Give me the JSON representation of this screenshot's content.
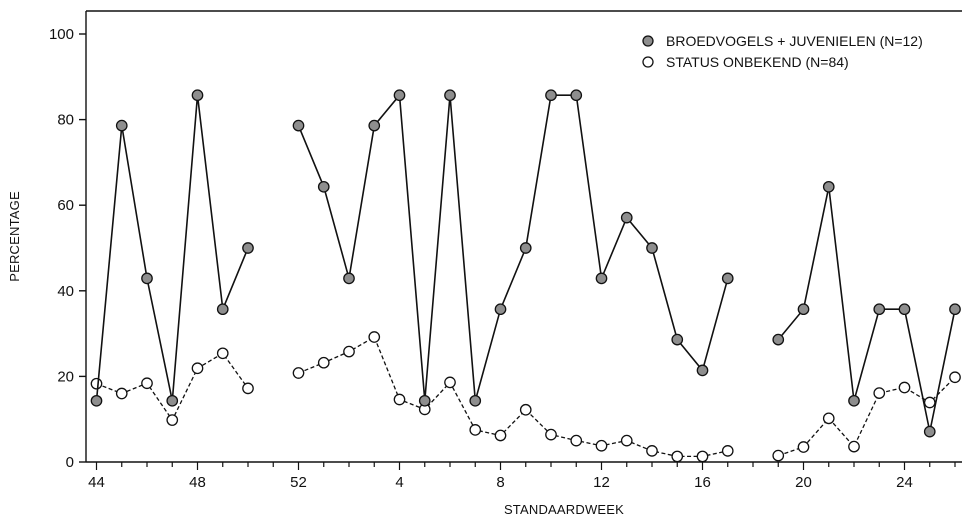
{
  "chart_data": {
    "type": "line",
    "xlabel": "STANDAARDWEEK",
    "ylabel": "PERCENTAGE",
    "ylim": [
      0,
      100
    ],
    "yticks": [
      0,
      20,
      40,
      60,
      80,
      100
    ],
    "x_tick_labels": [
      "44",
      "48",
      "52",
      "4",
      "8",
      "12",
      "16",
      "20",
      "24"
    ],
    "x_tick_positions": [
      0,
      4,
      8,
      12,
      16,
      20,
      24,
      28,
      32
    ],
    "categories": [
      "44",
      "45",
      "46",
      "47",
      "48",
      "49",
      "50",
      "51",
      "52",
      "53",
      "2",
      "3",
      "4",
      "5",
      "6",
      "7",
      "8",
      "9",
      "10",
      "11",
      "12",
      "13",
      "14",
      "15",
      "16",
      "17",
      "18",
      "19",
      "20",
      "21",
      "22",
      "23",
      "24",
      "25",
      "26"
    ],
    "legend_position": "top-right",
    "series": [
      {
        "name": "BROEDVOGELS + JUVENIELEN (N=12)",
        "marker": "filled",
        "line": "solid",
        "color": "#111111",
        "fill": "#8e8e8e",
        "values": [
          14.3,
          78.6,
          42.9,
          14.3,
          85.7,
          35.7,
          50.0,
          null,
          78.6,
          64.3,
          42.9,
          78.6,
          85.7,
          14.3,
          85.7,
          14.3,
          35.7,
          50.0,
          85.7,
          85.7,
          42.9,
          57.1,
          50.0,
          28.6,
          21.4,
          42.9,
          null,
          28.6,
          35.7,
          64.3,
          14.3,
          35.7,
          35.7,
          7.1,
          35.7
        ]
      },
      {
        "name": "STATUS ONBEKEND (N=84)",
        "marker": "open",
        "line": "dashed",
        "color": "#111111",
        "fill": "#ffffff",
        "values": [
          18.3,
          16.0,
          18.4,
          9.8,
          21.9,
          25.4,
          17.2,
          null,
          20.8,
          23.2,
          25.8,
          29.2,
          14.6,
          12.3,
          18.6,
          7.5,
          6.2,
          12.2,
          6.4,
          5.0,
          3.8,
          5.0,
          2.6,
          1.3,
          1.3,
          2.6,
          null,
          1.5,
          3.5,
          10.2,
          3.6,
          16.1,
          17.4,
          13.9,
          19.8
        ]
      }
    ]
  }
}
